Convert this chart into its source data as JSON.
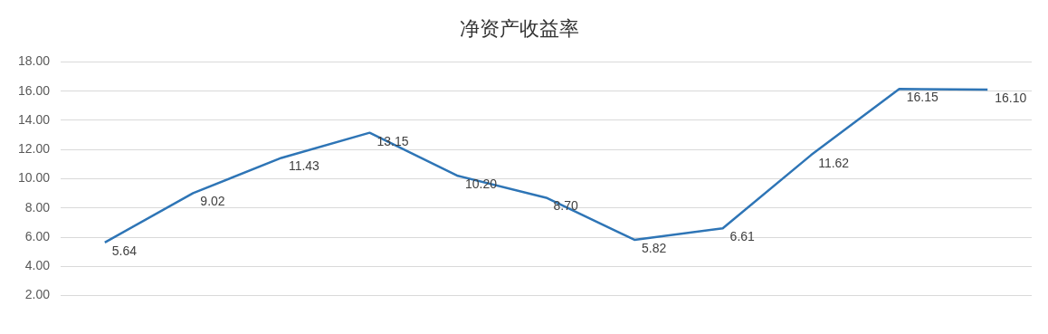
{
  "chart_data": {
    "type": "line",
    "title": "净资产收益率",
    "categories": [
      null,
      null,
      null,
      null,
      null,
      null,
      null,
      null,
      null,
      null,
      null
    ],
    "series": [
      {
        "color": "#2e75b6",
        "values": [
          5.64,
          9.02,
          11.43,
          13.15,
          10.2,
          8.7,
          5.82,
          6.61,
          11.62,
          16.15,
          16.1
        ],
        "value_labels": [
          "5.64",
          "9.02",
          "11.43",
          "13.15",
          "10.20",
          "8.70",
          "5.82",
          "6.61",
          "11.62",
          "16.15",
          "16.10"
        ]
      }
    ],
    "ylim": [
      2,
      18
    ],
    "yticks": [
      {
        "value": 2,
        "label": "2.00"
      },
      {
        "value": 4,
        "label": "4.00"
      },
      {
        "value": 6,
        "label": "6.00"
      },
      {
        "value": 8,
        "label": "8.00"
      },
      {
        "value": 10,
        "label": "10.00"
      },
      {
        "value": 12,
        "label": "12.00"
      },
      {
        "value": 14,
        "label": "14.00"
      },
      {
        "value": 16,
        "label": "16.00"
      },
      {
        "value": 18,
        "label": "18.00"
      }
    ],
    "grid": "y",
    "legend": false,
    "marker": "none",
    "line_style": "solid"
  }
}
